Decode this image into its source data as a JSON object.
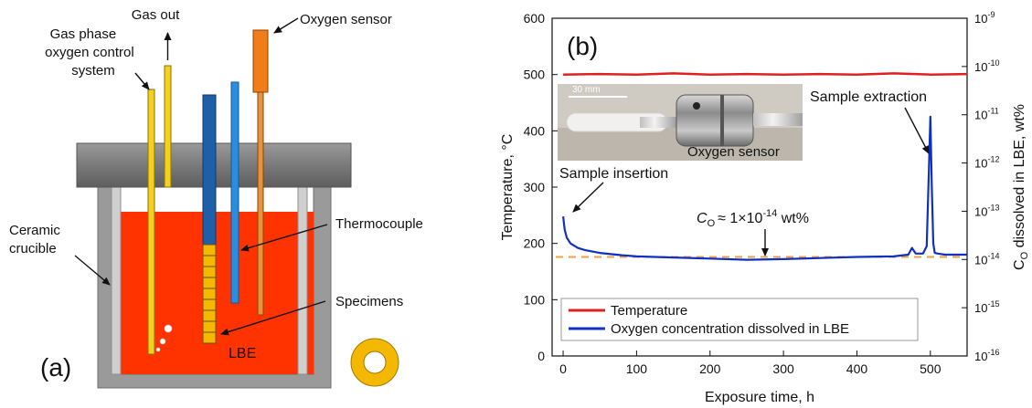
{
  "panel_a": {
    "panel_label": "(a)",
    "labels": {
      "gas_control": [
        "Gas phase",
        "oxygen control",
        "system"
      ],
      "gas_out": "Gas out",
      "oxygen_sensor": "Oxygen sensor",
      "thermocouple": "Thermocouple",
      "ceramic_crucible": [
        "Ceramic",
        "crucible"
      ],
      "specimens": "Specimens",
      "lbe": "LBE"
    },
    "colors": {
      "lbe": "#ff3300",
      "lid": "#8a8a8a",
      "crucible": "#9a9a9a",
      "gas_tube": "#f5d020",
      "specimen_holder": "#1f5fa8",
      "thermocouple": "#2b8de0",
      "oxygen_sensor": "#f07d1a",
      "specimen": "#f5b800",
      "ring": "#f5b800"
    }
  },
  "panel_b": {
    "panel_label": "(b)",
    "photo_scale": "30 mm",
    "photo_caption": "Oxygen sensor",
    "annotations": {
      "insertion": "Sample insertion",
      "extraction": "Sample extraction",
      "co_symbol": "C",
      "co_subscript": "O",
      "co_approx": "≈ 1×10",
      "co_exponent": "-14",
      "co_unit": " wt%"
    }
  },
  "chart_data": {
    "type": "line",
    "xlabel": "Exposure time, h",
    "ylabel": "Temperature, °C",
    "y2label": "C",
    "y2label_sub": "O",
    "y2label_rest": " dissolved in LBE, wt%",
    "xlim": [
      -15,
      550
    ],
    "ylim": [
      0,
      600
    ],
    "x_ticks": [
      0,
      100,
      200,
      300,
      400,
      500
    ],
    "y_ticks": [
      0,
      100,
      200,
      300,
      400,
      500,
      600
    ],
    "y2_scale": "log",
    "y2_ticks": [
      {
        "base": "10",
        "exp": "-16"
      },
      {
        "base": "10",
        "exp": "-15"
      },
      {
        "base": "10",
        "exp": "-14"
      },
      {
        "base": "10",
        "exp": "-13"
      },
      {
        "base": "10",
        "exp": "-12"
      },
      {
        "base": "10",
        "exp": "-11"
      },
      {
        "base": "10",
        "exp": "-10"
      },
      {
        "base": "10",
        "exp": "-9"
      }
    ],
    "legend_position": "bottom-left",
    "series": [
      {
        "name": "Temperature",
        "color": "#e02020",
        "x": [
          0,
          50,
          100,
          150,
          200,
          250,
          300,
          350,
          400,
          450,
          500,
          550
        ],
        "y": [
          500,
          501,
          500,
          502,
          500,
          501,
          500,
          501,
          500,
          502,
          500,
          501
        ]
      },
      {
        "name": "Oxygen concentration dissolved in LBE",
        "color": "#1030c0",
        "x": [
          0,
          2,
          5,
          10,
          20,
          30,
          50,
          80,
          100,
          150,
          200,
          250,
          300,
          350,
          400,
          450,
          470,
          475,
          480,
          490,
          495,
          498,
          500,
          502,
          504,
          506,
          510,
          520,
          550
        ],
        "y": [
          248,
          225,
          210,
          200,
          192,
          188,
          183,
          179,
          177,
          175,
          173,
          171,
          172,
          174,
          176,
          177,
          180,
          192,
          182,
          182,
          195,
          330,
          425,
          300,
          200,
          183,
          182,
          180,
          180
        ]
      }
    ],
    "reference_line": {
      "y": 176,
      "color": "#f0a040"
    }
  }
}
